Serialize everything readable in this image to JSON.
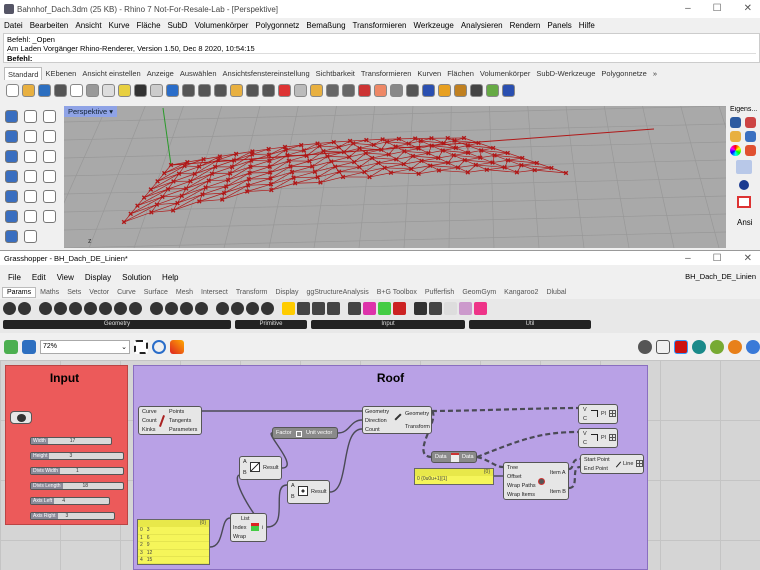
{
  "rhino": {
    "title": "Bahnhof_Dach.3dm (25 KB) - Rhino 7 Not-For-Resale-Lab - [Perspektive]",
    "menu": [
      "Datei",
      "Bearbeiten",
      "Ansicht",
      "Kurve",
      "Fläche",
      "SubD",
      "Volumenkörper",
      "Polygonnetz",
      "Bemaßung",
      "Transformieren",
      "Werkzeuge",
      "Analysieren",
      "Rendern",
      "Panels",
      "Hilfe"
    ],
    "command_history": [
      "Befehl: _Open",
      "Am Laden Vorgänger Rhino-Renderer, Version 1.50, Dec  8 2020, 10:54:15"
    ],
    "command_prompt": "Befehl:",
    "toolbar_tabs": [
      "Standard",
      "KEbenen",
      "Ansicht einstellen",
      "Anzeige",
      "Auswählen",
      "Ansichtsfenstereinstellung",
      "Sichtbarkeit",
      "Transformieren",
      "Kurven",
      "Flächen",
      "Volumenkörper",
      "SubD-Werkzeuge",
      "Polygonnetze"
    ],
    "more_tabs": "»",
    "viewport_name": "Perspektive",
    "axis_label": "z",
    "right_panel_title": "Eigens...",
    "right_panel_bottom": "Ansi",
    "curve_color": "#b01818"
  },
  "grasshopper": {
    "title": "Grasshopper - BH_Dach_DE_Linien*",
    "doc_name": "BH_Dach_DE_Linien",
    "menu": [
      "File",
      "Edit",
      "View",
      "Display",
      "Solution",
      "Help"
    ],
    "tabs": [
      "Params",
      "Maths",
      "Sets",
      "Vector",
      "Curve",
      "Surface",
      "Mesh",
      "Intersect",
      "Transform",
      "Display",
      "ggStructureAnalysis",
      "B+G Toolbox",
      "Pufferfish",
      "GeomGym",
      "Kangaroo2",
      "Dlubal"
    ],
    "ribbon_groups": [
      "Geometry",
      "Primitive",
      "Input",
      "Util"
    ],
    "zoom": "72%",
    "groups": {
      "input": {
        "title": "Input",
        "color": "#ec5a5a"
      },
      "roof": {
        "title": "Roof",
        "color": "#b9a1e6"
      }
    },
    "sliders": [
      {
        "label": "Width",
        "value": "17"
      },
      {
        "label": "Height",
        "value": "3"
      },
      {
        "label": "Divis Width",
        "value": "1"
      },
      {
        "label": "Divis Length",
        "value": "18"
      },
      {
        "label": "Axis Left",
        "value": "4"
      },
      {
        "label": "Axis Right",
        "value": "3"
      }
    ],
    "divide": {
      "inputs": [
        "Curve",
        "Count",
        "Kinks"
      ],
      "outputs": [
        "Points",
        "Tangents",
        "Parameters"
      ]
    },
    "move": {
      "inputs": [
        "Geometry",
        "Direction",
        "Count"
      ],
      "outputs": [
        "Geometry",
        "Transform"
      ]
    },
    "unit_vector": {
      "input": "Factor",
      "output": "Unit vector"
    },
    "division": {
      "inputs": [
        "A",
        "B"
      ],
      "output": "Result"
    },
    "multiplication": {
      "inputs": [
        "A",
        "B"
      ],
      "output": "Result"
    },
    "list_item": {
      "inputs": [
        "List",
        "Index",
        "Wrap"
      ],
      "output": "i"
    },
    "data": {
      "input": "Data",
      "output": "Data"
    },
    "relative_item": {
      "inputs": [
        "Tree",
        "Offset",
        "Wrap Paths",
        "Wrap Items"
      ],
      "outputs": [
        "Item A",
        "Item B"
      ]
    },
    "line": {
      "inputs": [
        "Start Point",
        "End Point"
      ],
      "output": "Line"
    },
    "polyline1": {
      "inputs": [
        "V",
        "C"
      ],
      "output": "Pl"
    },
    "polyline2": {
      "inputs": [
        "V",
        "C"
      ],
      "output": "Pl"
    },
    "panel_list": {
      "header": "{0}",
      "items": [
        {
          "i": "0",
          "v": "3"
        },
        {
          "i": "1",
          "v": "6"
        },
        {
          "i": "2",
          "v": "9"
        },
        {
          "i": "3",
          "v": "12"
        },
        {
          "i": "4",
          "v": "15"
        }
      ]
    },
    "panel_offset": {
      "header": "{0}",
      "text": "0  {0u0u+1}[1]"
    }
  }
}
